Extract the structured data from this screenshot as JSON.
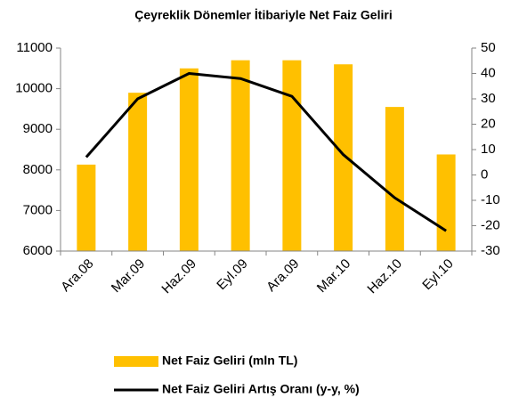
{
  "chart_data": {
    "type": "combo",
    "title": "Çeyreklik Dönemler İtibariyle Net Faiz Geliri",
    "categories": [
      "Ara.08",
      "Mar.09",
      "Haz.09",
      "Eyl.09",
      "Ara.09",
      "Mar.10",
      "Haz.10",
      "Eyl.10"
    ],
    "series": [
      {
        "name": "Net Faiz Geliri (mln TL)",
        "type": "bar",
        "color": "#ffc000",
        "values": [
          8130,
          9900,
          10500,
          10700,
          10700,
          10600,
          9550,
          8380
        ]
      },
      {
        "name": "Net Faiz Geliri Artış Oranı (y-y, %)",
        "type": "line",
        "axis": "y2",
        "color": "#000000",
        "values": [
          7,
          30,
          40,
          38,
          31,
          8,
          -9,
          -22
        ]
      }
    ],
    "ylim": [
      6000,
      11000
    ],
    "yticks": [
      6000,
      7000,
      8000,
      9000,
      10000,
      11000
    ],
    "y2lim": [
      -30,
      50
    ],
    "y2ticks": [
      -30,
      -20,
      -10,
      0,
      10,
      20,
      30,
      40,
      50
    ],
    "legend": "bottom"
  }
}
